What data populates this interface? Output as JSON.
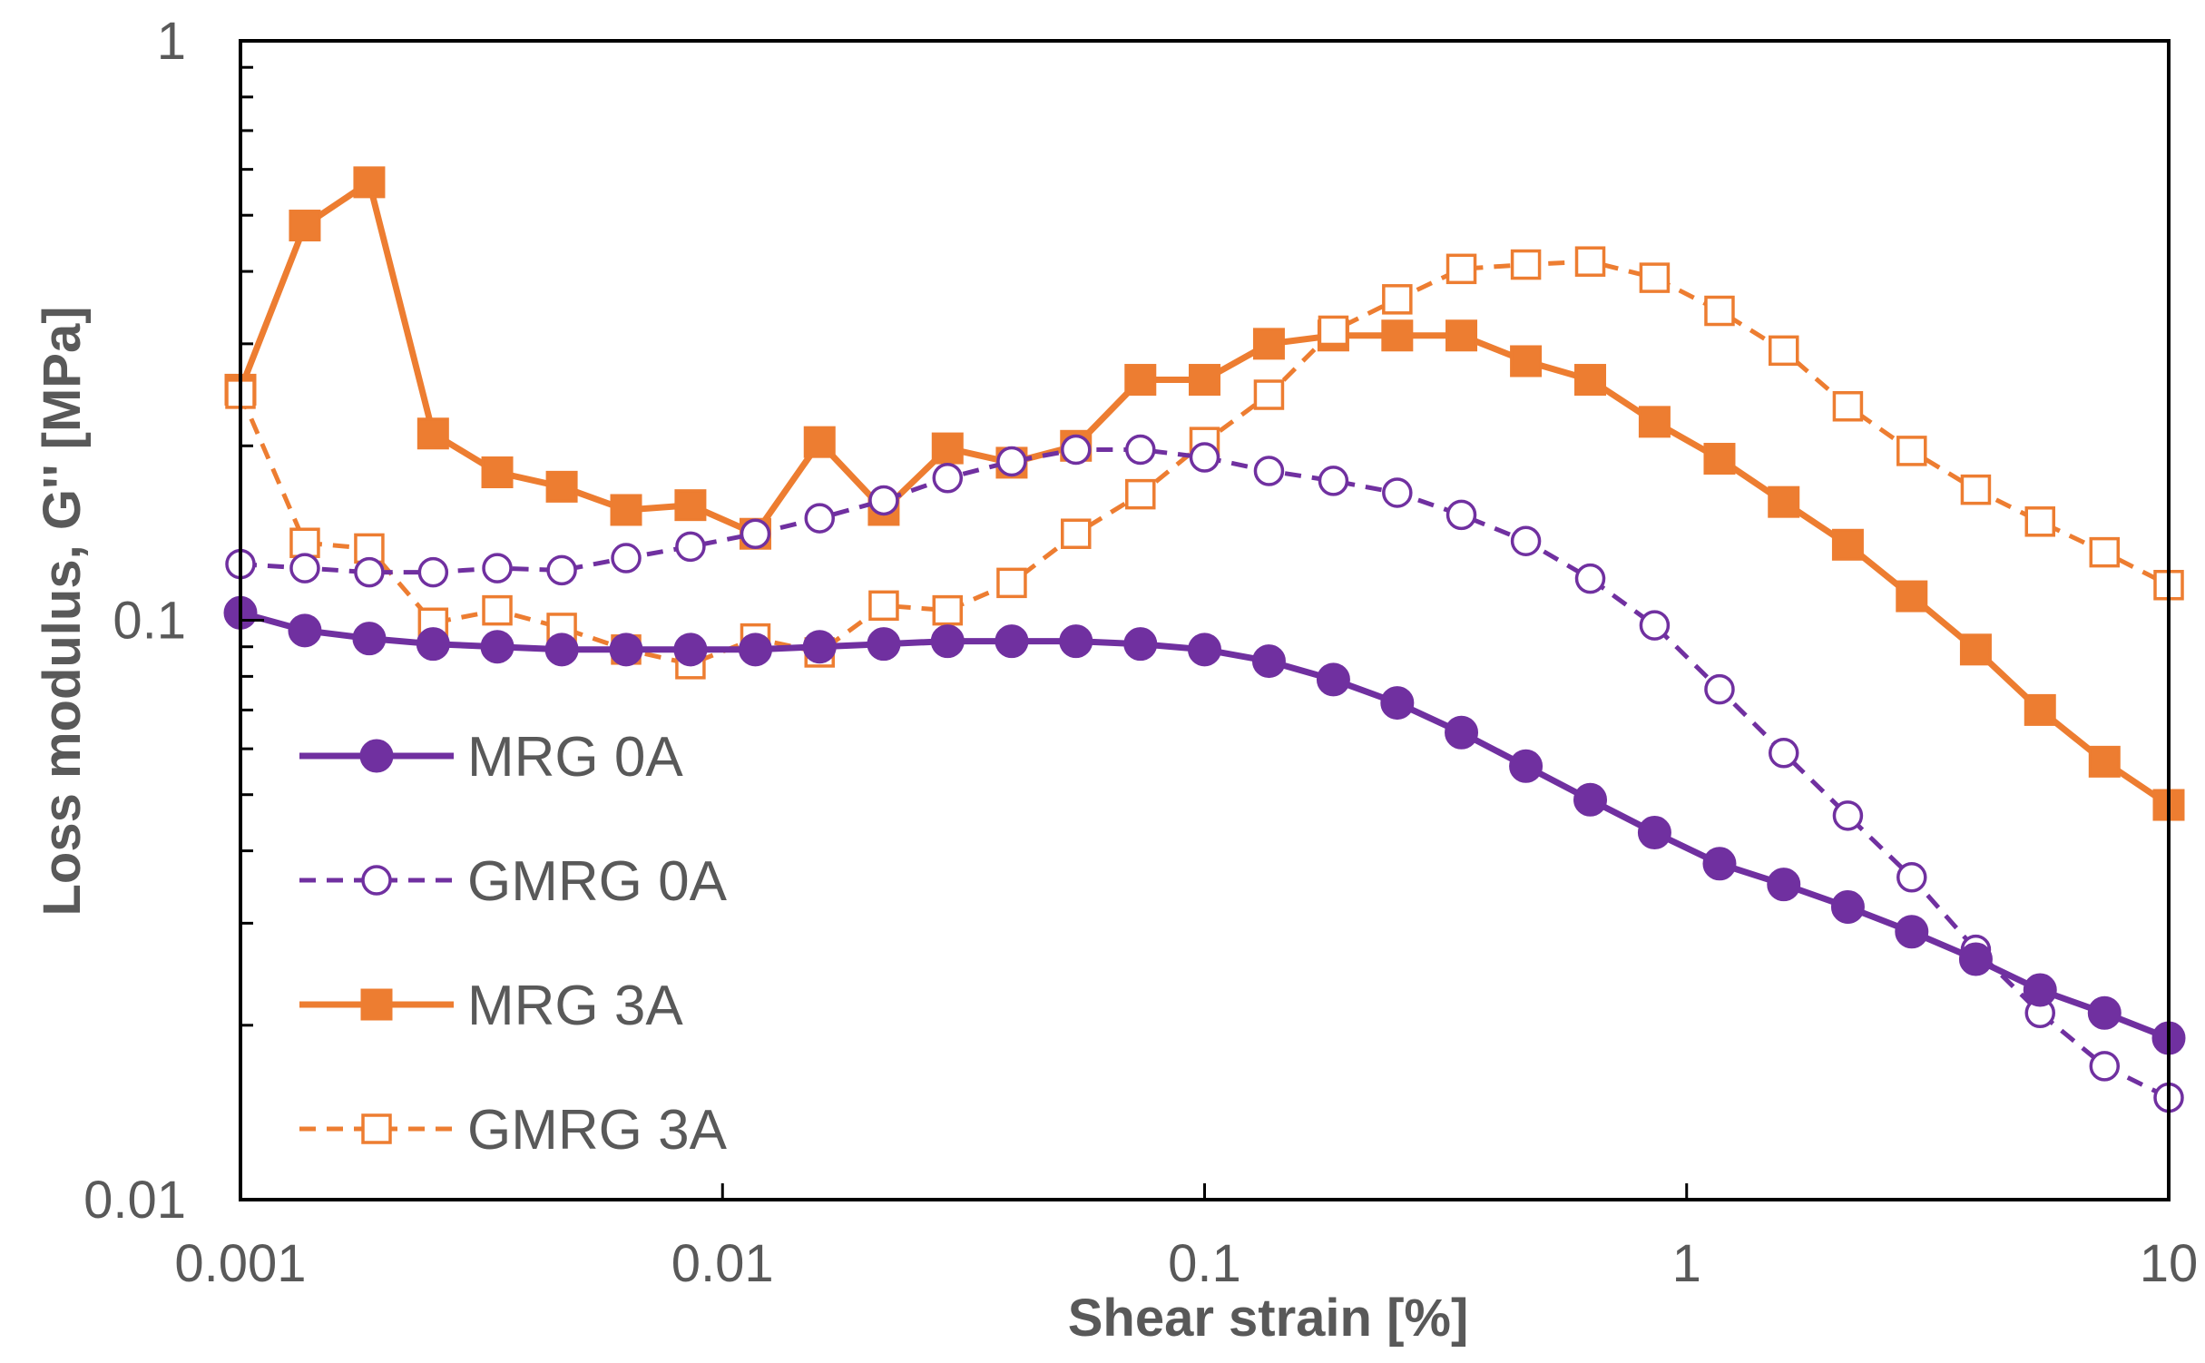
{
  "chart_data": {
    "type": "line",
    "title": "",
    "xlabel": "Shear strain [%]",
    "ylabel": "Loss modulus, G'' [MPa]",
    "xscale": "log",
    "yscale": "log",
    "xlim": [
      0.001,
      10
    ],
    "ylim": [
      0.01,
      1
    ],
    "xticks": [
      {
        "value": 0.001,
        "label": "0.001"
      },
      {
        "value": 0.01,
        "label": "0.01"
      },
      {
        "value": 0.1,
        "label": "0.1"
      },
      {
        "value": 1,
        "label": "1"
      },
      {
        "value": 10,
        "label": "10"
      }
    ],
    "yticks": [
      {
        "value": 0.01,
        "label": "0.01"
      },
      {
        "value": 0.1,
        "label": "0.1"
      },
      {
        "value": 1,
        "label": "1"
      }
    ],
    "grid": false,
    "legend_position": "bottom-left",
    "x": [
      0.001,
      0.00136,
      0.00185,
      0.00251,
      0.00341,
      0.00464,
      0.00631,
      0.00858,
      0.0117,
      0.0159,
      0.0216,
      0.0293,
      0.0398,
      0.0541,
      0.0736,
      0.1,
      0.136,
      0.185,
      0.251,
      0.341,
      0.464,
      0.631,
      0.858,
      1.17,
      1.59,
      2.16,
      2.93,
      3.98,
      5.41,
      7.36,
      10
    ],
    "series": [
      {
        "name": "MRG 0A",
        "color": "#7030A0",
        "marker": "filled-circle",
        "line": "solid",
        "values": [
          0.103,
          0.096,
          0.093,
          0.091,
          0.09,
          0.089,
          0.089,
          0.089,
          0.089,
          0.09,
          0.091,
          0.092,
          0.092,
          0.092,
          0.091,
          0.089,
          0.085,
          0.079,
          0.072,
          0.064,
          0.056,
          0.049,
          0.043,
          0.038,
          0.035,
          0.032,
          0.029,
          0.026,
          0.023,
          0.021,
          0.019
        ]
      },
      {
        "name": "GMRG 0A",
        "color": "#7030A0",
        "marker": "open-circle",
        "line": "dashed",
        "values": [
          0.125,
          0.123,
          0.121,
          0.121,
          0.123,
          0.122,
          0.128,
          0.134,
          0.141,
          0.15,
          0.161,
          0.176,
          0.188,
          0.197,
          0.197,
          0.191,
          0.181,
          0.174,
          0.166,
          0.152,
          0.137,
          0.118,
          0.098,
          0.076,
          0.059,
          0.046,
          0.036,
          0.027,
          0.021,
          0.017,
          0.015
        ]
      },
      {
        "name": "MRG 3A",
        "color": "#ED7D31",
        "marker": "filled-square",
        "line": "solid",
        "values": [
          0.25,
          0.48,
          0.57,
          0.21,
          0.18,
          0.17,
          0.155,
          0.158,
          0.141,
          0.203,
          0.155,
          0.198,
          0.187,
          0.2,
          0.26,
          0.26,
          0.3,
          0.31,
          0.31,
          0.31,
          0.28,
          0.26,
          0.22,
          0.19,
          0.16,
          0.135,
          0.11,
          0.089,
          0.07,
          0.057,
          0.048
        ]
      },
      {
        "name": "GMRG 3A",
        "color": "#ED7D31",
        "marker": "open-square",
        "line": "dashed",
        "values": [
          0.246,
          0.136,
          0.133,
          0.099,
          0.104,
          0.097,
          0.089,
          0.084,
          0.093,
          0.088,
          0.106,
          0.104,
          0.116,
          0.141,
          0.165,
          0.203,
          0.245,
          0.316,
          0.358,
          0.404,
          0.411,
          0.416,
          0.39,
          0.342,
          0.292,
          0.234,
          0.196,
          0.168,
          0.148,
          0.131,
          0.115
        ]
      }
    ]
  }
}
